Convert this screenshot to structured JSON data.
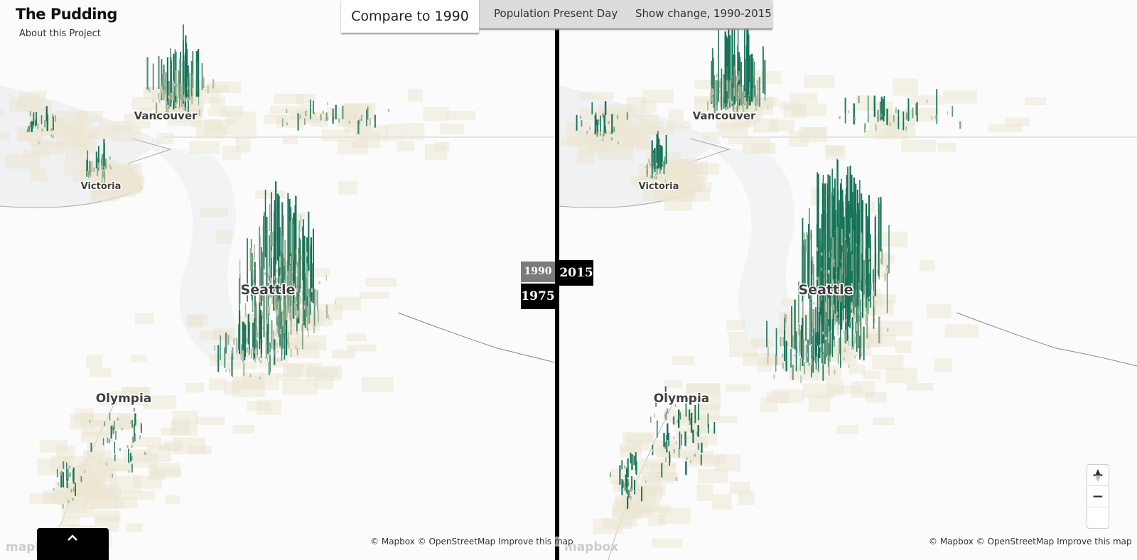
{
  "header": {
    "title": "The Pudding",
    "link": "About this Project"
  },
  "tabs": [
    "Compare to 1990",
    "Population Present Day",
    "Show change, 1990-2015"
  ],
  "panels": [
    {
      "cities": [
        "Vancouver",
        "Victoria",
        "Seattle",
        "Olympia"
      ],
      "years": [
        "1990",
        "1975"
      ],
      "logo": "mapbox",
      "attribution": "© Mapbox © OpenStreetMap Improve this map"
    },
    {
      "cities": [
        "Vancouver",
        "Victoria",
        "Seattle",
        "Olympia"
      ],
      "years": [
        "2015"
      ],
      "logo": "mapbox",
      "attribution": "© Mapbox © OpenStreetMap Improve this map"
    }
  ],
  "controls": {
    "zoom_in": "+",
    "zoom_out": "−"
  }
}
